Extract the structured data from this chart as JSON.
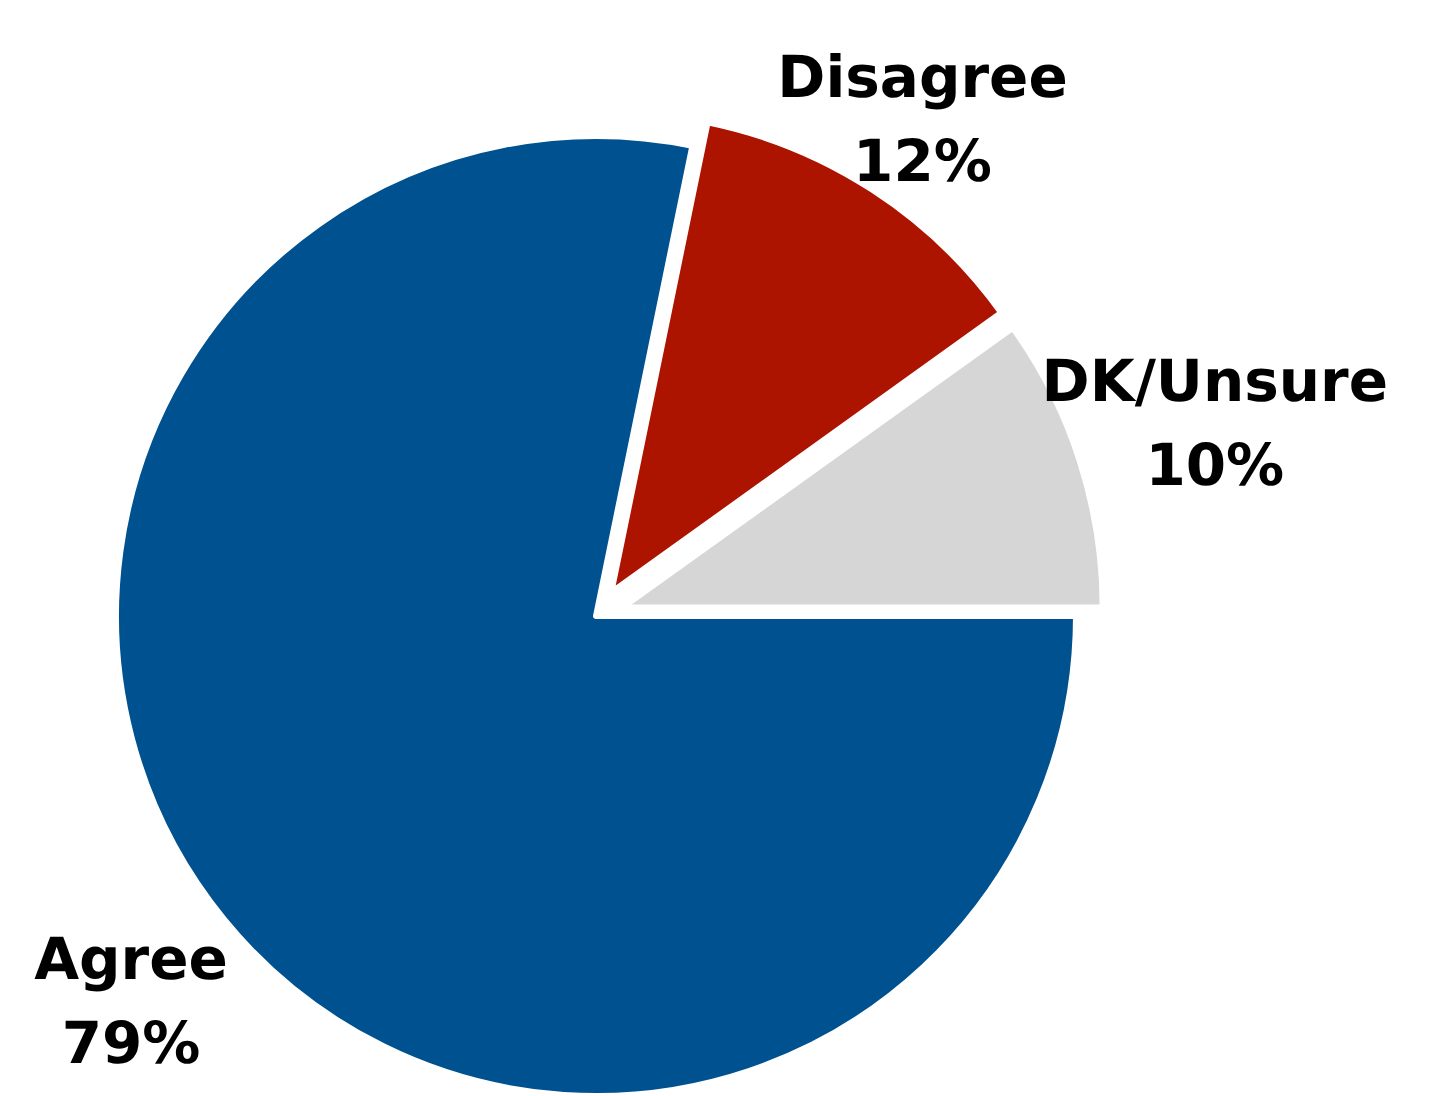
{
  "chart_data": {
    "type": "pie",
    "categories": [
      "Agree",
      "Disagree",
      "DK/Unsure"
    ],
    "values": [
      79,
      12,
      10
    ],
    "colors": [
      "#00518f",
      "#ad1400",
      "#d6d6d6"
    ],
    "value_labels": [
      "79%",
      "12%",
      "10%"
    ],
    "legend": false
  }
}
